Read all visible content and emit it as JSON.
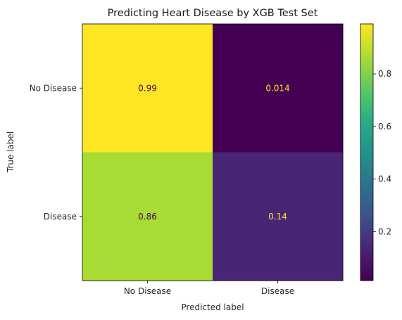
{
  "chart_data": {
    "type": "heatmap",
    "title": "Predicting Heart Disease by XGB Test Set",
    "xlabel": "Predicted label",
    "ylabel": "True label",
    "x_categories": [
      "No Disease",
      "Disease"
    ],
    "y_categories": [
      "No Disease",
      "Disease"
    ],
    "values": [
      [
        0.99,
        0.014
      ],
      [
        0.86,
        0.14
      ]
    ],
    "value_labels": [
      [
        "0.99",
        "0.014"
      ],
      [
        "0.86",
        "0.14"
      ]
    ],
    "colormap": "viridis",
    "colorbar": {
      "range": [
        0.014,
        0.99
      ],
      "ticks": [
        0.2,
        0.4,
        0.6,
        0.8
      ],
      "tick_labels": [
        "0.2",
        "0.4",
        "0.6",
        "0.8"
      ]
    },
    "label_colors": {
      "on_dark": "#fde725",
      "on_light": "#440154"
    }
  }
}
